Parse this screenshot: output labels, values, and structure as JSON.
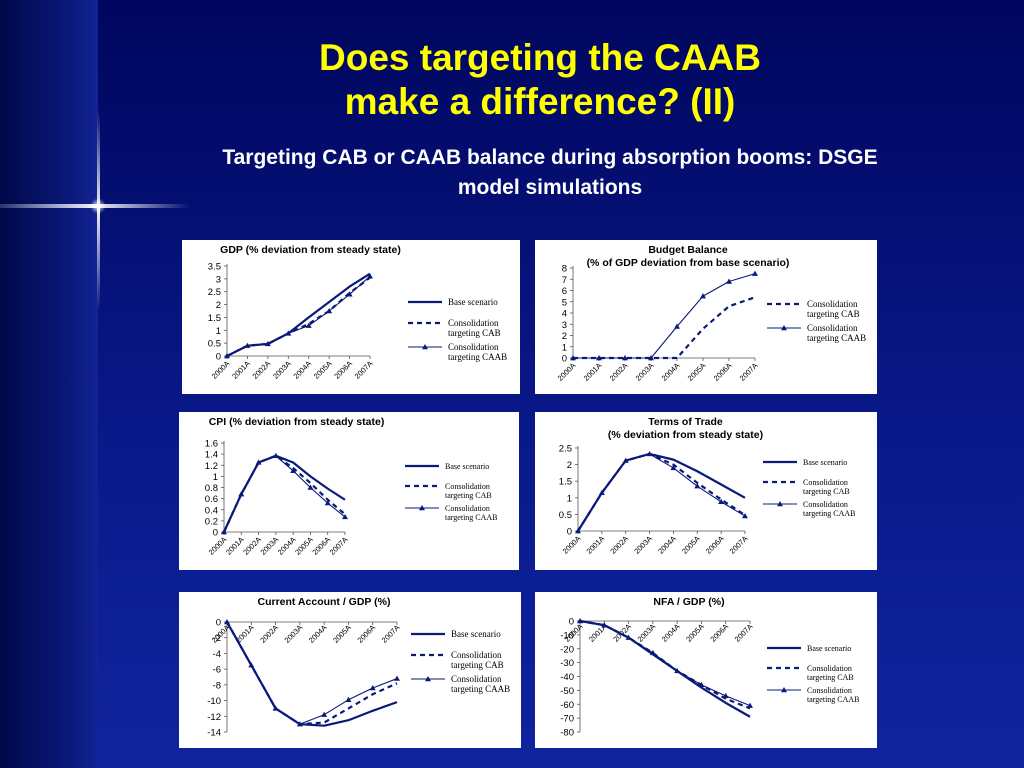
{
  "slide": {
    "title_line1": "Does targeting the CAAB",
    "title_line2": "make a difference? (II)",
    "subtitle_line1": "Targeting CAB or CAAB balance during absorption booms: DSGE",
    "subtitle_line2": "model simulations"
  },
  "colors": {
    "line": "#0a1a78",
    "title": "#ffff00",
    "subtitle": "#ffffff"
  },
  "chart_data": [
    {
      "type": "line",
      "title": [
        "GDP (% deviation from steady state)"
      ],
      "categories": [
        "2000A",
        "2001A",
        "2002A",
        "2003A",
        "2004A",
        "2005A",
        "2006A",
        "2007A"
      ],
      "ylim": [
        0,
        3.5
      ],
      "yticks": [
        0,
        0.5,
        1,
        1.5,
        2,
        2.5,
        3,
        3.5
      ],
      "series": [
        {
          "name": "Base scenario",
          "values": [
            0,
            0.4,
            0.47,
            0.88,
            1.5,
            2.1,
            2.7,
            3.2
          ]
        },
        {
          "name": "Consolidation targeting CAB",
          "values": [
            0,
            0.4,
            0.47,
            0.88,
            1.25,
            1.75,
            2.45,
            3.05
          ]
        },
        {
          "name": "Consolidation targeting CAAB",
          "values": [
            0,
            0.4,
            0.47,
            0.88,
            1.18,
            1.75,
            2.4,
            3.1
          ]
        }
      ]
    },
    {
      "type": "line",
      "title": [
        "Budget Balance",
        "(% of GDP deviation from base scenario)"
      ],
      "categories": [
        "2000A",
        "2001A",
        "2002A",
        "2003A",
        "2004A",
        "2005A",
        "2006A",
        "2007A"
      ],
      "ylim": [
        0,
        8
      ],
      "yticks": [
        0,
        1,
        2,
        3,
        4,
        5,
        6,
        7,
        8
      ],
      "series": [
        {
          "name": "Consolidation targeting CAB",
          "values": [
            0,
            0,
            0,
            0,
            0,
            2.6,
            4.6,
            5.4
          ]
        },
        {
          "name": "Consolidation targeting CAAB",
          "values": [
            0,
            0,
            0,
            0,
            2.8,
            5.5,
            6.8,
            7.5
          ]
        }
      ]
    },
    {
      "type": "line",
      "title": [
        "CPI (% deviation from steady state)"
      ],
      "categories": [
        "2000A",
        "2001A",
        "2002A",
        "2003A",
        "2004A",
        "2005A",
        "2006A",
        "2007A"
      ],
      "ylim": [
        0,
        1.6
      ],
      "yticks": [
        0,
        0.2,
        0.4,
        0.6,
        0.8,
        1,
        1.2,
        1.4,
        1.6
      ],
      "series": [
        {
          "name": "Base scenario",
          "values": [
            0,
            0.68,
            1.25,
            1.37,
            1.25,
            1.0,
            0.78,
            0.58
          ]
        },
        {
          "name": "Consolidation targeting CAB",
          "values": [
            0,
            0.68,
            1.25,
            1.37,
            1.15,
            0.88,
            0.58,
            0.32
          ]
        },
        {
          "name": "Consolidation targeting CAAB",
          "values": [
            0,
            0.68,
            1.25,
            1.37,
            1.1,
            0.8,
            0.52,
            0.27
          ]
        }
      ]
    },
    {
      "type": "line",
      "title": [
        "Terms of Trade",
        "(% deviation from steady state)"
      ],
      "categories": [
        "2000A",
        "2001A",
        "2002A",
        "2003A",
        "2004A",
        "2005A",
        "2006A",
        "2007A"
      ],
      "ylim": [
        0,
        2.5
      ],
      "yticks": [
        0,
        0.5,
        1,
        1.5,
        2,
        2.5
      ],
      "series": [
        {
          "name": "Base scenario",
          "values": [
            0,
            1.15,
            2.12,
            2.32,
            2.15,
            1.8,
            1.4,
            1.0
          ]
        },
        {
          "name": "Consolidation targeting CAB",
          "values": [
            0,
            1.15,
            2.12,
            2.32,
            2.0,
            1.45,
            0.95,
            0.48
          ]
        },
        {
          "name": "Consolidation targeting CAAB",
          "values": [
            0,
            1.15,
            2.12,
            2.32,
            1.9,
            1.35,
            0.88,
            0.45
          ]
        }
      ]
    },
    {
      "type": "line",
      "title": [
        "Current Account / GDP (%)"
      ],
      "categories": [
        "2000A",
        "2001A",
        "2002A",
        "2003A",
        "2004A",
        "2005A",
        "2006A",
        "2007A"
      ],
      "ylim": [
        -14,
        0
      ],
      "yticks": [
        0,
        -2,
        -4,
        -6,
        -8,
        -10,
        -12,
        -14
      ],
      "series": [
        {
          "name": "Base scenario",
          "values": [
            0,
            -5.5,
            -11,
            -13,
            -13.2,
            -12.5,
            -11.3,
            -10.2
          ]
        },
        {
          "name": "Consolidation targeting CAB",
          "values": [
            0,
            -5.5,
            -11,
            -13,
            -12.8,
            -11,
            -9.2,
            -7.8
          ]
        },
        {
          "name": "Consolidation targeting CAAB",
          "values": [
            0,
            -5.5,
            -11,
            -13,
            -11.8,
            -9.9,
            -8.4,
            -7.2
          ]
        }
      ]
    },
    {
      "type": "line",
      "title": [
        "NFA / GDP (%)"
      ],
      "categories": [
        "2000A",
        "2001A",
        "2002A",
        "2003A",
        "2004A",
        "2005A",
        "2006A",
        "2007A"
      ],
      "ylim": [
        -80,
        0
      ],
      "yticks": [
        0,
        -10,
        -20,
        -30,
        -40,
        -50,
        -60,
        -70,
        -80
      ],
      "series": [
        {
          "name": "Base scenario",
          "values": [
            0,
            -3,
            -12,
            -24,
            -36,
            -48,
            -59,
            -69
          ]
        },
        {
          "name": "Consolidation targeting CAB",
          "values": [
            0,
            -3,
            -12,
            -23,
            -36,
            -46,
            -56,
            -63
          ]
        },
        {
          "name": "Consolidation targeting CAAB",
          "values": [
            0,
            -3,
            -12,
            -23,
            -36,
            -46,
            -54,
            -61
          ]
        }
      ]
    }
  ]
}
